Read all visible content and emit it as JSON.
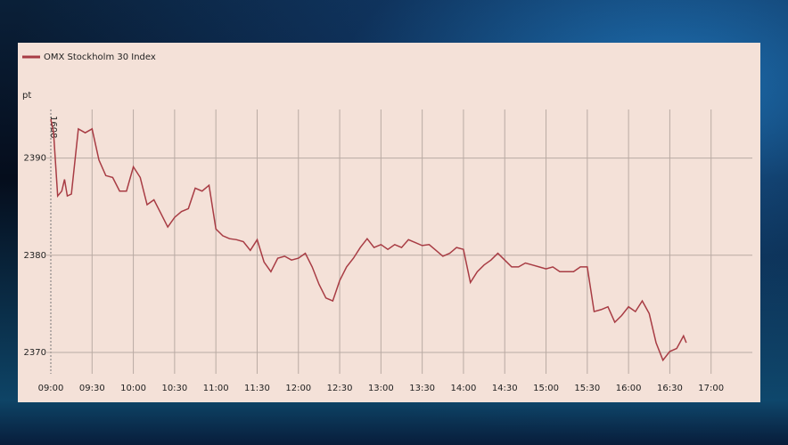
{
  "chart_data": {
    "type": "line",
    "y_label": "pt",
    "annotation": "1608",
    "x": [
      "09:00",
      "09:02",
      "09:05",
      "09:08",
      "09:10",
      "09:12",
      "09:15",
      "09:20",
      "09:25",
      "09:30",
      "09:35",
      "09:40",
      "09:45",
      "09:50",
      "09:55",
      "10:00",
      "10:05",
      "10:10",
      "10:15",
      "10:20",
      "10:25",
      "10:30",
      "10:35",
      "10:40",
      "10:45",
      "10:50",
      "10:55",
      "11:00",
      "11:05",
      "11:10",
      "11:15",
      "11:20",
      "11:25",
      "11:30",
      "11:35",
      "11:40",
      "11:45",
      "11:50",
      "11:55",
      "12:00",
      "12:05",
      "12:10",
      "12:15",
      "12:20",
      "12:25",
      "12:30",
      "12:35",
      "12:40",
      "12:45",
      "12:50",
      "12:55",
      "13:00",
      "13:05",
      "13:10",
      "13:15",
      "13:20",
      "13:25",
      "13:30",
      "13:35",
      "13:40",
      "13:45",
      "13:50",
      "13:55",
      "14:00",
      "14:05",
      "14:10",
      "14:15",
      "14:20",
      "14:25",
      "14:30",
      "14:35",
      "14:40",
      "14:45",
      "14:50",
      "14:55",
      "15:00",
      "15:05",
      "15:10",
      "15:15",
      "15:20",
      "15:25",
      "15:30",
      "15:35",
      "15:40",
      "15:45",
      "15:50",
      "15:55",
      "16:00",
      "16:05",
      "16:10",
      "16:15",
      "16:20",
      "16:25",
      "16:30",
      "16:35",
      "16:40",
      "16:42"
    ],
    "series": [
      {
        "name": "OMX Stockholm 30 Index",
        "color": "#a83c44",
        "values": [
          2394,
          2392.6,
          2386.1,
          2386.6,
          2387.8,
          2386.1,
          2386.3,
          2393,
          2392.6,
          2393,
          2389.8,
          2388.2,
          2388,
          2386.6,
          2386.6,
          2389.1,
          2388,
          2385.2,
          2385.7,
          2384.3,
          2382.9,
          2383.9,
          2384.5,
          2384.8,
          2386.9,
          2386.6,
          2387.2,
          2382.7,
          2382,
          2381.7,
          2381.6,
          2381.4,
          2380.5,
          2381.6,
          2379.3,
          2378.3,
          2379.7,
          2379.9,
          2379.5,
          2379.7,
          2380.2,
          2378.8,
          2377,
          2375.6,
          2375.3,
          2377.4,
          2378.8,
          2379.7,
          2380.8,
          2381.7,
          2380.8,
          2381.1,
          2380.6,
          2381.1,
          2380.8,
          2381.6,
          2381.3,
          2381,
          2381.1,
          2380.5,
          2379.9,
          2380.2,
          2380.8,
          2380.6,
          2377.2,
          2378.3,
          2379,
          2379.5,
          2380.2,
          2379.5,
          2378.8,
          2378.8,
          2379.2,
          2379,
          2378.8,
          2378.6,
          2378.8,
          2378.3,
          2378.3,
          2378.3,
          2378.8,
          2378.8,
          2374.2,
          2374.4,
          2374.7,
          2373.1,
          2373.8,
          2374.7,
          2374.2,
          2375.3,
          2374,
          2371,
          2369.2,
          2370.1,
          2370.4,
          2371.7,
          2371
        ]
      }
    ],
    "xlim": [
      "09:00",
      "17:30"
    ],
    "xticks": [
      "09:00",
      "09:30",
      "10:00",
      "10:30",
      "11:00",
      "11:30",
      "12:00",
      "12:30",
      "13:00",
      "13:30",
      "14:00",
      "14:30",
      "15:00",
      "15:30",
      "16:00",
      "16:30",
      "17:00"
    ],
    "ylim": [
      2367.8,
      2395
    ],
    "yticks": [
      2370,
      2380,
      2390
    ],
    "grid": true
  }
}
